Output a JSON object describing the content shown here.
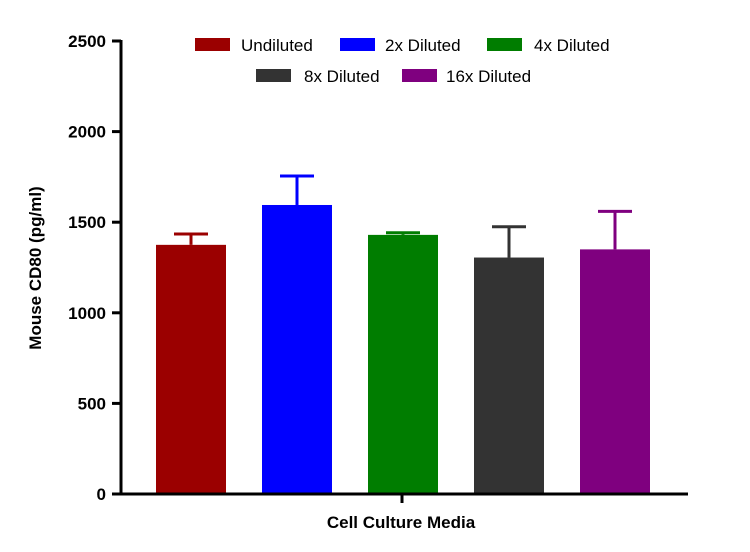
{
  "chart_data": {
    "type": "bar",
    "title": "",
    "xlabel": "Cell Culture Media",
    "ylabel": "Mouse CD80 (pg/ml)",
    "ylim": [
      0,
      2500
    ],
    "yticks": [
      0,
      500,
      1000,
      1500,
      2000,
      2500
    ],
    "grid": false,
    "legend_position": "top",
    "series": [
      {
        "name": "Undiluted",
        "value": 1375,
        "error": 60,
        "color": "#9b0000"
      },
      {
        "name": "2x Diluted",
        "value": 1595,
        "error": 160,
        "color": "#0000ff"
      },
      {
        "name": "4x Diluted",
        "value": 1430,
        "error": 12,
        "color": "#007d00"
      },
      {
        "name": "8x Diluted",
        "value": 1305,
        "error": 170,
        "color": "#333333"
      },
      {
        "name": "16x Diluted",
        "value": 1350,
        "error": 210,
        "color": "#7f007f"
      }
    ]
  }
}
